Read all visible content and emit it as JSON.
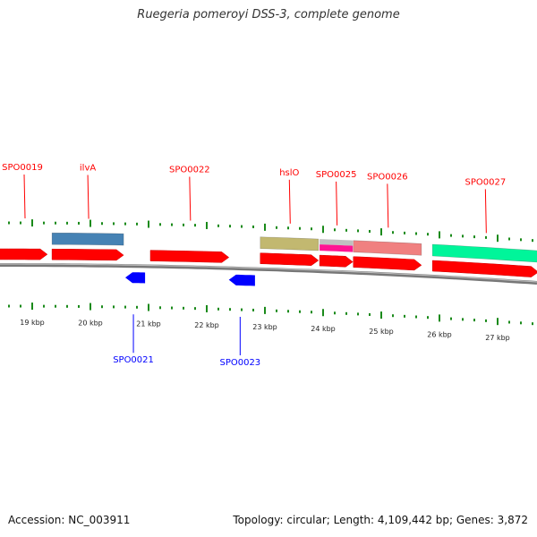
{
  "title": "Ruegeria pomeroyi DSS-3, complete genome",
  "footer": {
    "accession": "Accession: NC_003911",
    "topology": "Topology: circular; Length: 4,109,442 bp; Genes: 3,872"
  },
  "colors": {
    "cds": "#ff0000",
    "cds_minus": "#0000ff",
    "backbone": "#888888",
    "ticks": "#1a8a1a"
  },
  "ruler": {
    "major_labels": [
      "19 kbp",
      "20 kbp",
      "21 kbp",
      "22 kbp",
      "23 kbp",
      "24 kbp",
      "25 kbp",
      "26 kbp",
      "27 kbp"
    ],
    "major_values": [
      19,
      20,
      21,
      22,
      23,
      24,
      25,
      26,
      27
    ]
  },
  "genes": [
    {
      "name": "SPO0019",
      "strand": "+",
      "start_kbp": 17.4,
      "end_kbp": 19.26,
      "label_color": "#ff0000"
    },
    {
      "name": "ilvA",
      "strand": "+",
      "start_kbp": 19.34,
      "end_kbp": 20.57,
      "feature_color": "#4682b4",
      "label_color": "#ff0000"
    },
    {
      "name": "SPO0021",
      "strand": "-",
      "start_kbp": 20.6,
      "end_kbp": 20.94,
      "label_color": "#0000ff"
    },
    {
      "name": "SPO0022",
      "strand": "+",
      "start_kbp": 21.03,
      "end_kbp": 22.38,
      "label_color": "#ff0000"
    },
    {
      "name": "SPO0023",
      "strand": "-",
      "start_kbp": 22.38,
      "end_kbp": 22.83,
      "label_color": "#0000ff"
    },
    {
      "name": "hslO",
      "strand": "+",
      "start_kbp": 22.92,
      "end_kbp": 23.92,
      "feature_color": "#c2b870",
      "label_color": "#ff0000"
    },
    {
      "name": "SPO0025",
      "strand": "+",
      "start_kbp": 23.94,
      "end_kbp": 24.51,
      "feature_color": "#c0c0c0",
      "feature_color2": "#ff1493",
      "label_color": "#ff0000"
    },
    {
      "name": "SPO0026",
      "strand": "+",
      "start_kbp": 24.52,
      "end_kbp": 25.69,
      "feature_color": "#f08080",
      "label_color": "#ff0000"
    },
    {
      "name": "SPO0027",
      "strand": "+",
      "start_kbp": 25.88,
      "end_kbp": 27.7,
      "feature_color": "#00f59a",
      "label_color": "#ff0000"
    }
  ]
}
